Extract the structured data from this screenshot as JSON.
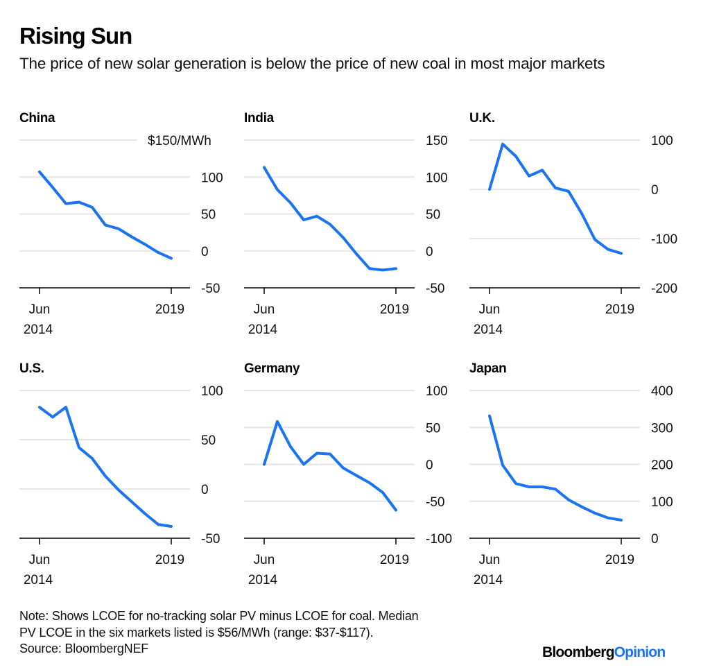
{
  "header": {
    "title": "Rising Sun",
    "subtitle": "The price of new solar generation is below the price of new coal in most major markets"
  },
  "footer": {
    "note_line1": "Note: Shows LCOE for no-tracking solar PV minus LCOE for coal. Median",
    "note_line2": "PV LCOE in the six markets listed is $56/MWh (range: $37-$117).",
    "source": "Source: BloombergNEF",
    "logo_part1": "Bloomberg",
    "logo_part2": "Opinion"
  },
  "colors": {
    "line": "#1a73f0",
    "grid": "#e6e6e6",
    "axis": "#000000"
  },
  "chart_data": [
    {
      "type": "line",
      "title": "China",
      "unit_label": "$150/MWh",
      "ylim": [
        -50,
        150
      ],
      "yticks": [
        150,
        100,
        50,
        0,
        -50
      ],
      "ytick_labels": [
        "$150/MWh",
        "100",
        "50",
        "0",
        "-50"
      ],
      "xtick_labels": [
        [
          "Jun",
          "2014"
        ],
        [
          "2019"
        ]
      ],
      "x": [
        0,
        1,
        2,
        3,
        4,
        5,
        6,
        7,
        8,
        9,
        10
      ],
      "values": [
        107,
        86,
        64,
        66,
        59,
        35,
        30,
        19,
        9,
        -2,
        -10
      ]
    },
    {
      "type": "line",
      "title": "India",
      "ylim": [
        -50,
        150
      ],
      "yticks": [
        150,
        100,
        50,
        0,
        -50
      ],
      "ytick_labels": [
        "150",
        "100",
        "50",
        "0",
        "-50"
      ],
      "xtick_labels": [
        [
          "Jun",
          "2014"
        ],
        [
          "2019"
        ]
      ],
      "x": [
        0,
        1,
        2,
        3,
        4,
        5,
        6,
        7,
        8,
        9,
        10
      ],
      "values": [
        113,
        83,
        65,
        42,
        47,
        36,
        18,
        -4,
        -24,
        -26,
        -24
      ]
    },
    {
      "type": "line",
      "title": "U.K.",
      "ylim": [
        -200,
        100
      ],
      "yticks": [
        100,
        0,
        -100,
        -200
      ],
      "ytick_labels": [
        "100",
        "0",
        "-100",
        "-200"
      ],
      "xtick_labels": [
        [
          "Jun",
          "2014"
        ],
        [
          "2019"
        ]
      ],
      "x": [
        0,
        1,
        2,
        3,
        4,
        5,
        6,
        7,
        8,
        9,
        10
      ],
      "values": [
        0,
        92,
        67,
        27,
        39,
        3,
        -4,
        -49,
        -102,
        -122,
        -130
      ]
    },
    {
      "type": "line",
      "title": "U.S.",
      "ylim": [
        -50,
        100
      ],
      "yticks": [
        100,
        50,
        0,
        -50
      ],
      "ytick_labels": [
        "100",
        "50",
        "0",
        "-50"
      ],
      "xtick_labels": [
        [
          "Jun",
          "2014"
        ],
        [
          "2019"
        ]
      ],
      "x": [
        0,
        1,
        2,
        3,
        4,
        5,
        6,
        7,
        8,
        9,
        10
      ],
      "values": [
        83,
        73,
        83,
        42,
        31,
        13,
        -1,
        -13,
        -25,
        -36,
        -38
      ]
    },
    {
      "type": "line",
      "title": "Germany",
      "ylim": [
        -100,
        100
      ],
      "yticks": [
        100,
        50,
        0,
        -50,
        -100
      ],
      "ytick_labels": [
        "100",
        "50",
        "0",
        "-50",
        "-100"
      ],
      "xtick_labels": [
        [
          "Jun",
          "2014"
        ],
        [
          "2019"
        ]
      ],
      "x": [
        0,
        1,
        2,
        3,
        4,
        5,
        6,
        7,
        8,
        9,
        10
      ],
      "values": [
        0,
        58,
        24,
        0,
        15,
        14,
        -5,
        -15,
        -25,
        -38,
        -62
      ]
    },
    {
      "type": "line",
      "title": "Japan",
      "ylim": [
        0,
        400
      ],
      "yticks": [
        400,
        300,
        200,
        100,
        0
      ],
      "ytick_labels": [
        "400",
        "300",
        "200",
        "100",
        "0"
      ],
      "xtick_labels": [
        [
          "Jun",
          "2014"
        ],
        [
          "2019"
        ]
      ],
      "x": [
        0,
        1,
        2,
        3,
        4,
        5,
        6,
        7,
        8,
        9,
        10
      ],
      "values": [
        331,
        198,
        148,
        139,
        139,
        133,
        104,
        85,
        68,
        55,
        49
      ]
    }
  ]
}
